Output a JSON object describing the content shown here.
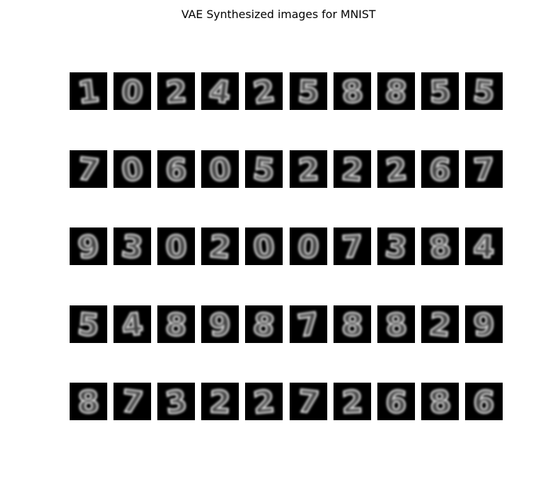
{
  "title": "VAE Synthesized images for MNIST",
  "grid": {
    "rows": 5,
    "cols": 10,
    "digits": [
      [
        "1",
        "0",
        "2",
        "4",
        "2",
        "5",
        "8",
        "8",
        "5",
        "5"
      ],
      [
        "7",
        "0",
        "6",
        "0",
        "5",
        "2",
        "2",
        "2",
        "6",
        "7"
      ],
      [
        "9",
        "3",
        "0",
        "2",
        "0",
        "0",
        "7",
        "3",
        "8",
        "4"
      ],
      [
        "5",
        "4",
        "8",
        "9",
        "8",
        "7",
        "8",
        "8",
        "2",
        "9"
      ],
      [
        "8",
        "7",
        "3",
        "2",
        "2",
        "7",
        "2",
        "6",
        "8",
        "6"
      ]
    ]
  },
  "colors": {
    "cell_background": "#000000",
    "stroke": "#e8e8e8"
  }
}
